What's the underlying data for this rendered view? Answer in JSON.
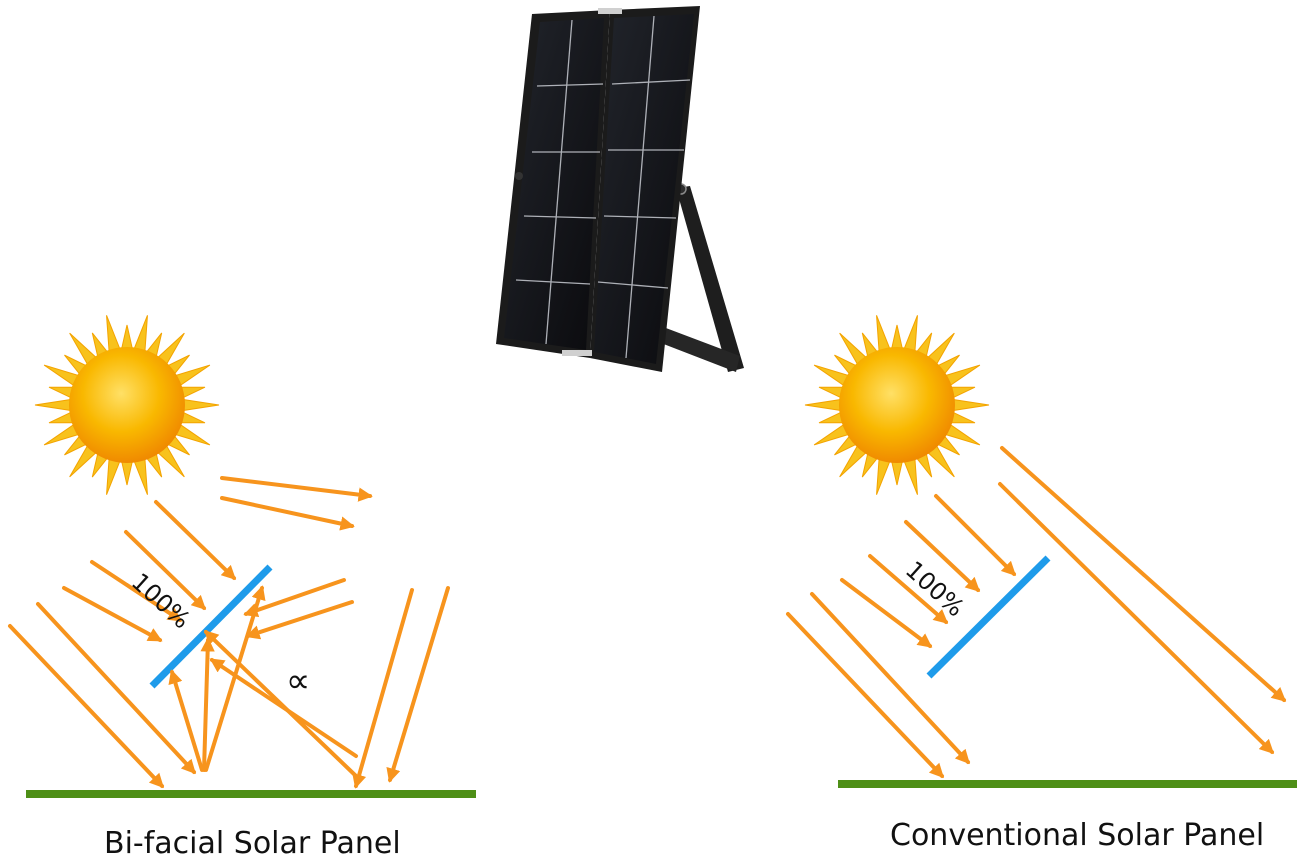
{
  "labels": {
    "bifacial_caption": "Bi-facial Solar Panel",
    "conventional_caption": "Conventional Solar Panel",
    "bifacial_percent": "100%",
    "conventional_percent": "100%",
    "albedo_symbol": "∝"
  },
  "colors": {
    "ray": "#F7941D",
    "panel_line": "#1E9BEA",
    "ground": "#4E8F17",
    "sun_core": "#F6A800",
    "sun_rays": "#F8C21C",
    "module_frame": "#1B1B1B",
    "module_cell": "#0F0F12",
    "module_grid": "#C9CCD3"
  },
  "icons": {
    "sun_left": "sun-icon",
    "sun_right": "sun-icon",
    "module": "solar-module-illustration"
  }
}
